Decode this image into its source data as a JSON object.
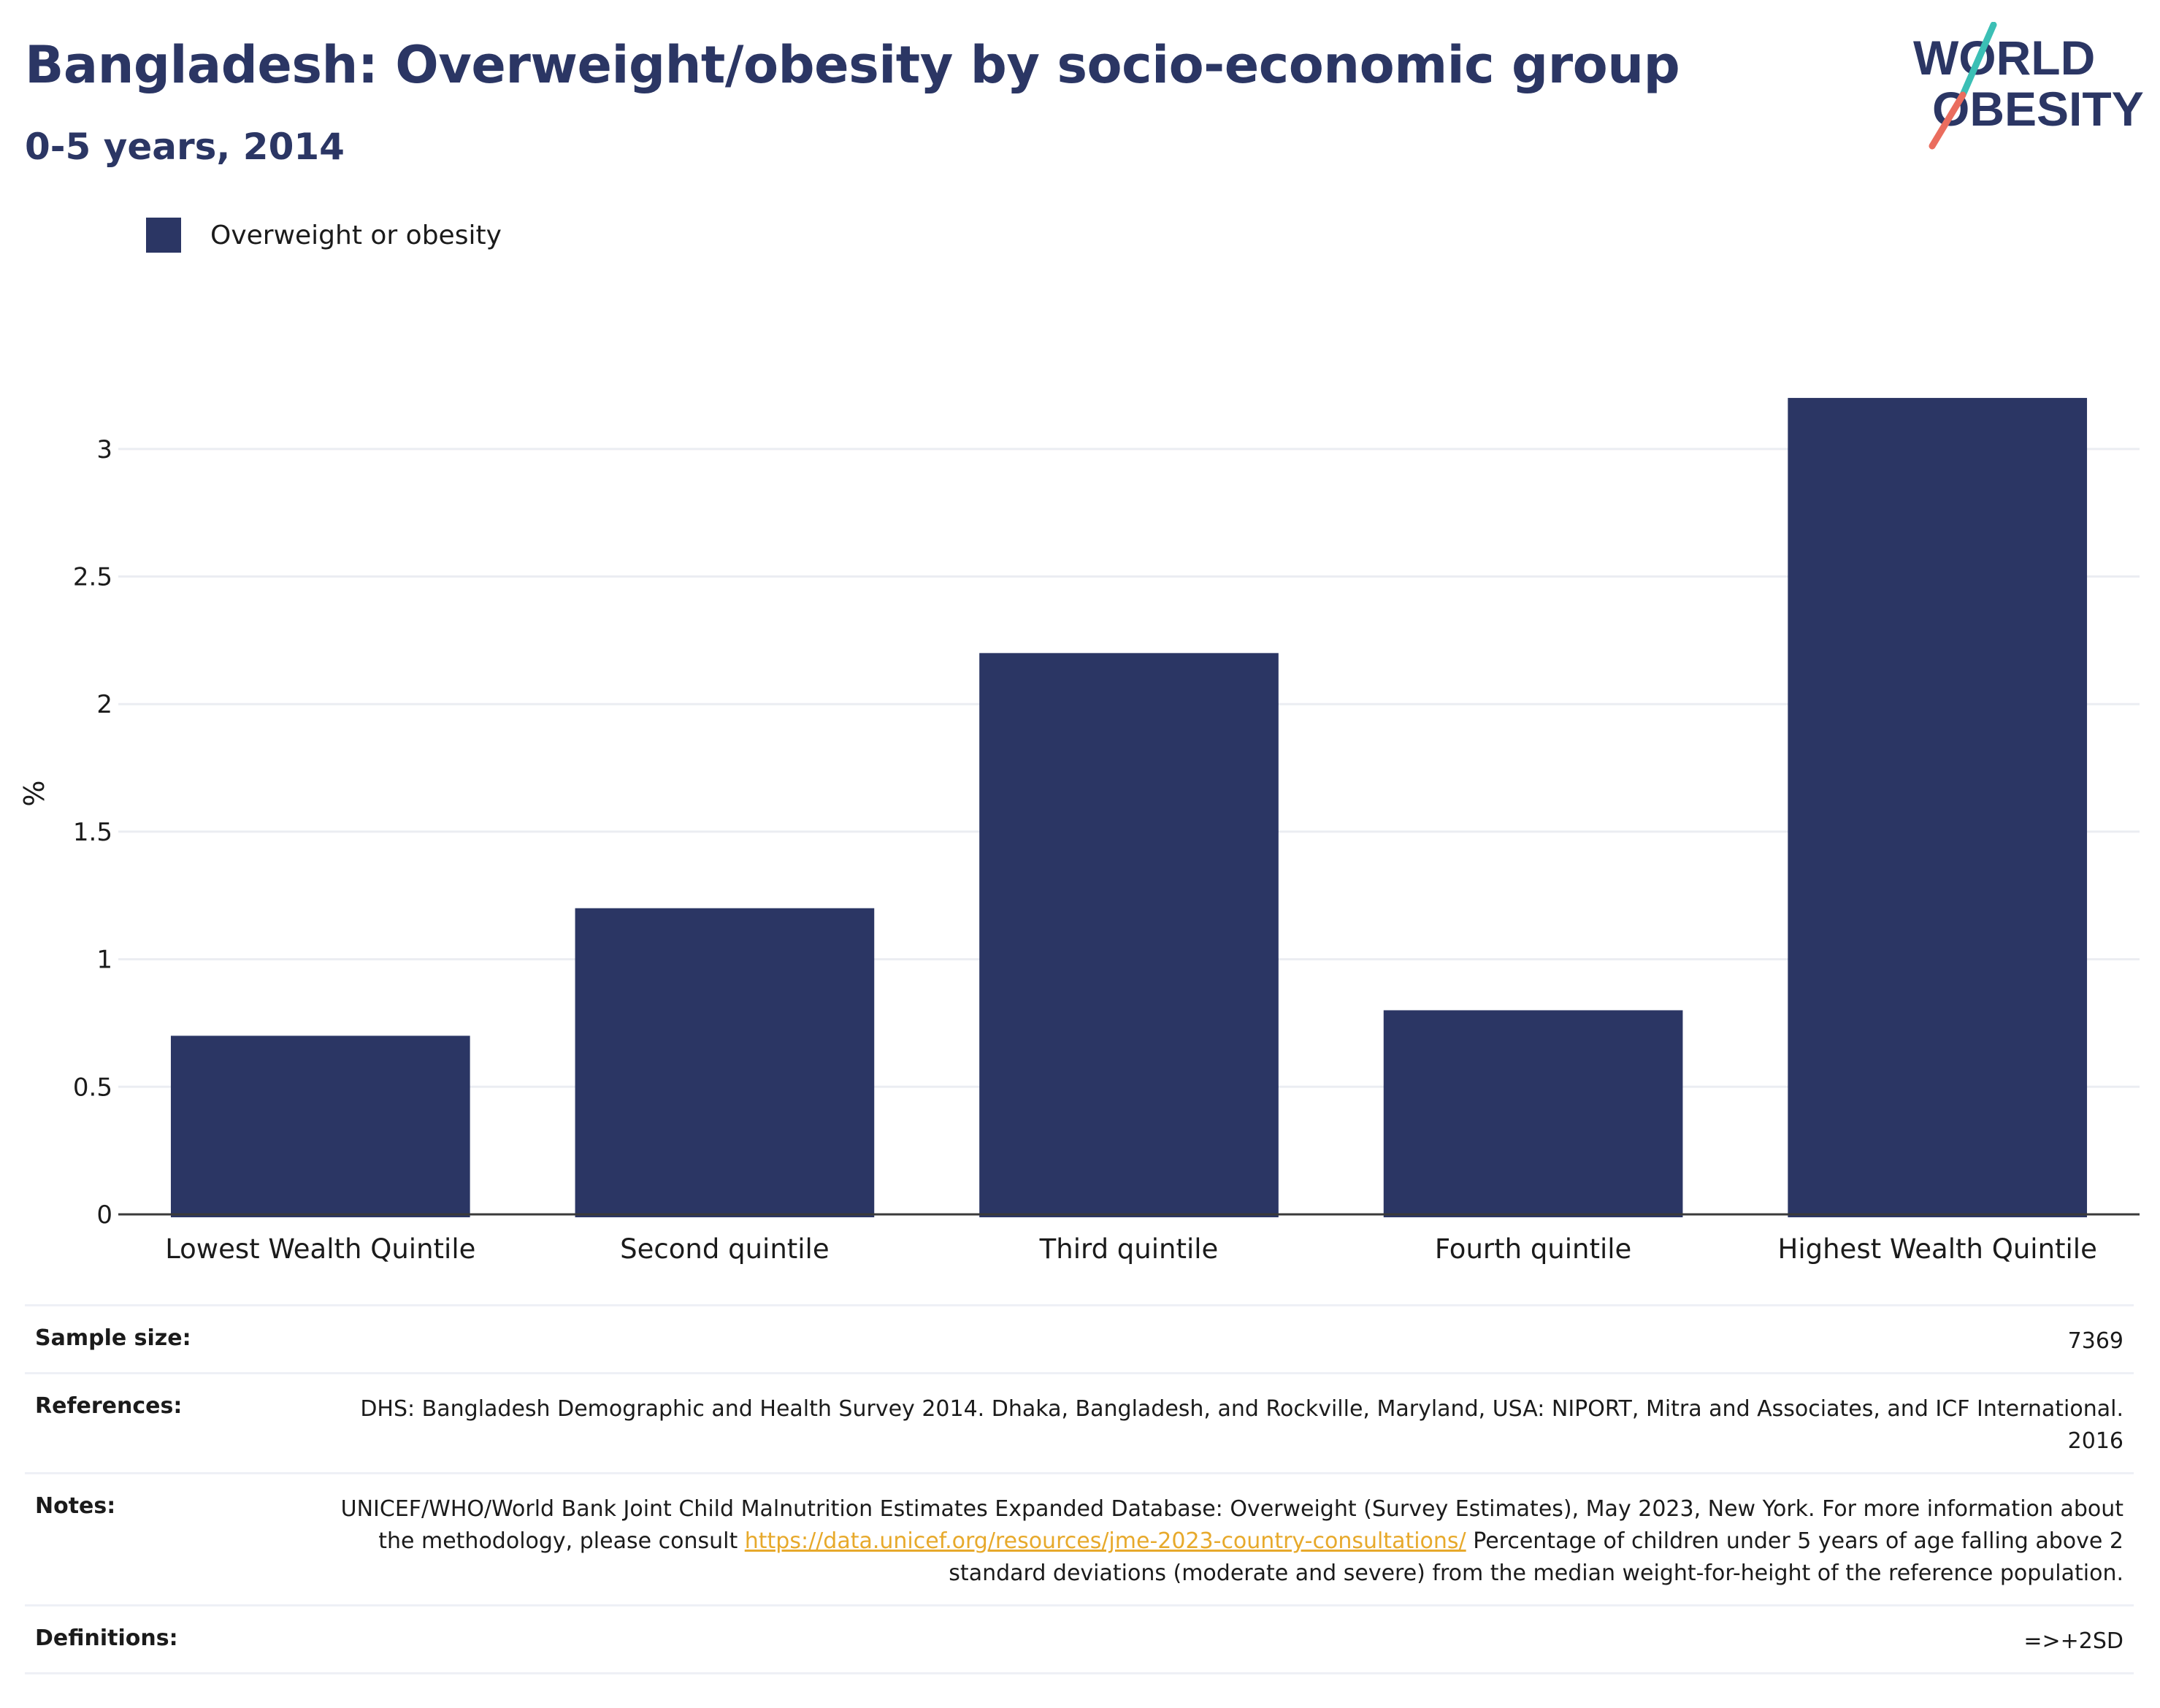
{
  "header": {
    "title": "Bangladesh: Overweight/obesity by socio-economic group",
    "subtitle": "0-5 years, 2014"
  },
  "logo": {
    "line1": "WORLD",
    "line2": "OBESITY"
  },
  "legend": {
    "label": "Overweight or obesity"
  },
  "colors": {
    "bar": "#2b3664",
    "text": "#1b1b1b",
    "grid": "#ebedf2",
    "link": "#e7a92b",
    "logo_teal": "#3bbfb5",
    "logo_coral": "#ea6d5e"
  },
  "chart_data": {
    "type": "bar",
    "categories": [
      "Lowest Wealth Quintile",
      "Second quintile",
      "Third quintile",
      "Fourth quintile",
      "Highest Wealth Quintile"
    ],
    "series": [
      {
        "name": "Overweight or obesity",
        "values": [
          0.7,
          1.2,
          2.2,
          0.8,
          3.2
        ]
      }
    ],
    "ylabel": "%",
    "ylim": [
      0,
      3.3
    ],
    "yticks": [
      0,
      0.5,
      1,
      1.5,
      2,
      2.5,
      3
    ],
    "ytick_labels": [
      "0",
      "0.5",
      "1",
      "1.5",
      "2",
      "2.5",
      "3"
    ],
    "grid": true,
    "legend_position": "top-left"
  },
  "info": {
    "sample_size_key": "Sample size:",
    "sample_size_val": "7369",
    "references_key": "References:",
    "references_val": "DHS: Bangladesh Demographic and Health Survey 2014. Dhaka, Bangladesh, and Rockville, Maryland, USA: NIPORT, Mitra and Associates, and ICF International. 2016",
    "notes_key": "Notes:",
    "notes_val_before": "UNICEF/WHO/World Bank Joint Child Malnutrition Estimates Expanded Database: Overweight (Survey Estimates), May 2023, New York. For more information about the methodology, please consult ",
    "notes_link": "https://data.unicef.org/resources/jme-2023-country-consultations/",
    "notes_val_after": " Percentage of children under 5 years of age falling above 2 standard deviations (moderate and severe) from the median weight-for-height of the reference population.",
    "definitions_key": "Definitions:",
    "definitions_val": "=>+2SD"
  }
}
